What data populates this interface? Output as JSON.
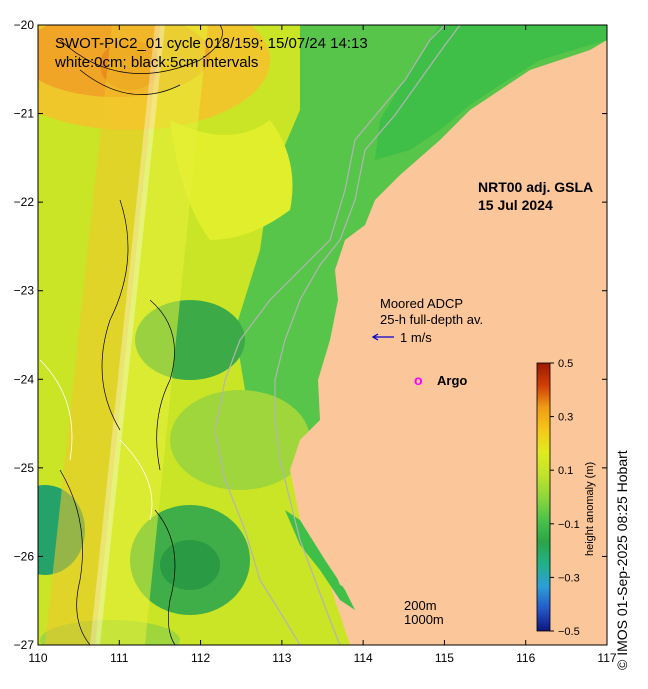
{
  "map": {
    "title_line1": "SWOT-PIC2_01 cycle 018/159; 15/07/24 14:13",
    "title_line2": "white:0cm; black:5cm intervals",
    "product_line1": "NRT00 adj. GSLA",
    "product_line2": "15 Jul 2024",
    "adcp_line1": "Moored ADCP",
    "adcp_line2": "25-h full-depth av.",
    "adcp_scale_label": "1 m/s",
    "argo_symbol": "o",
    "argo_label": "Argo",
    "depth_label_1": "200m",
    "depth_label_2": "1000m",
    "credit": "© IMOS 01-Sep-2025 08:25 Hobart",
    "lon_ticks": [
      "110",
      "111",
      "112",
      "113",
      "114",
      "115",
      "116",
      "117"
    ],
    "lat_ticks": [
      "−20",
      "−21",
      "−22",
      "−23",
      "−24",
      "−25",
      "−26",
      "−27"
    ],
    "lon_range": [
      110,
      117
    ],
    "lat_range": [
      -27,
      -20
    ],
    "colorbar": {
      "title": "height anomaly (m)",
      "ticks": [
        "0.5",
        "0.3",
        "0.1",
        "−0.1",
        "−0.3",
        "−0.5"
      ],
      "range": [
        -0.5,
        0.5
      ],
      "colors": [
        "#9c1a00",
        "#d23d06",
        "#ef9d14",
        "#f5c718",
        "#e0ec1d",
        "#c2e32a",
        "#8fd63a",
        "#4cc24b",
        "#2aa646",
        "#22b08a",
        "#2c9ed7",
        "#2558c8",
        "#0c157c"
      ]
    },
    "colors": {
      "land": "#fbc69a",
      "ocean_green": "#3fbf48",
      "swath_yellow": "#e8f03a",
      "anomaly_orange": "#f1ad2a",
      "argo": "#ff00ff",
      "adcp_arrow": "#0000cc",
      "isobath": "#b4b4b4"
    }
  }
}
